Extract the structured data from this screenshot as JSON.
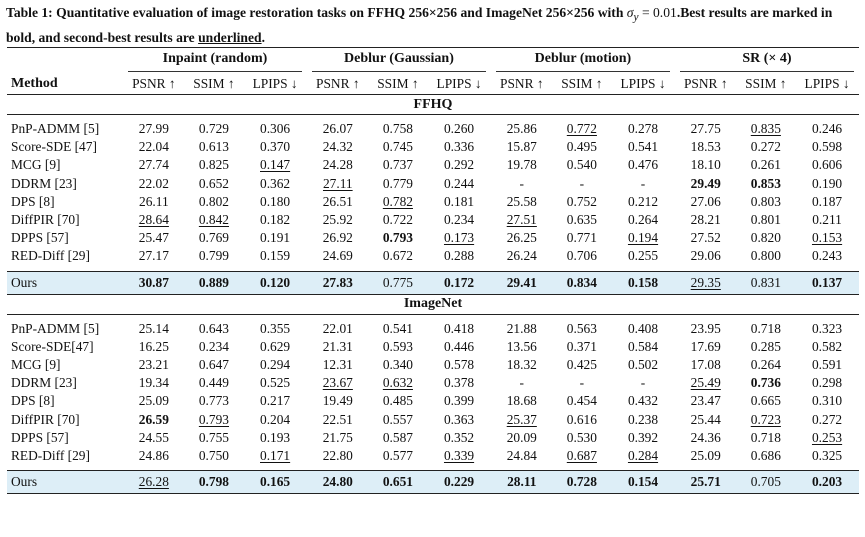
{
  "caption": {
    "label": "Table 1:",
    "text_before_sigma": " Quantitative evaluation of image restoration tasks on FFHQ 256×256 and ImageNet 256×256 with ",
    "sigma": "σ",
    "sigma_sub": "y",
    "sigma_value": " = 0.01",
    "text_after": ".Best results are marked in bold, and second-best results are ",
    "underlined_word": "underlined",
    "period": "."
  },
  "table": {
    "method_header": "Method",
    "groups": [
      "Inpaint (random)",
      "Deblur (Gaussian)",
      "Deblur (motion)",
      "SR (× 4)"
    ],
    "metrics": [
      "PSNR ↑",
      "SSIM ↑",
      "LPIPS ↓",
      "PSNR ↑",
      "SSIM ↑",
      "LPIPS ↓",
      "PSNR ↑",
      "SSIM ↑",
      "LPIPS ↓",
      "PSNR ↑",
      "SSIM ↑",
      "LPIPS ↓"
    ],
    "sections": [
      {
        "name": "FFHQ",
        "rows": [
          {
            "method": "PnP-ADMM [5]",
            "cells": [
              {
                "v": "27.99"
              },
              {
                "v": "0.729"
              },
              {
                "v": "0.306"
              },
              {
                "v": "26.07"
              },
              {
                "v": "0.758"
              },
              {
                "v": "0.260"
              },
              {
                "v": "25.86"
              },
              {
                "v": "0.772",
                "u": true
              },
              {
                "v": "0.278"
              },
              {
                "v": "27.75"
              },
              {
                "v": "0.835",
                "u": true
              },
              {
                "v": "0.246"
              }
            ]
          },
          {
            "method": "Score-SDE [47]",
            "cells": [
              {
                "v": "22.04"
              },
              {
                "v": "0.613"
              },
              {
                "v": "0.370"
              },
              {
                "v": "24.32"
              },
              {
                "v": "0.745"
              },
              {
                "v": "0.336"
              },
              {
                "v": "15.87"
              },
              {
                "v": "0.495"
              },
              {
                "v": "0.541"
              },
              {
                "v": "18.53"
              },
              {
                "v": "0.272"
              },
              {
                "v": "0.598"
              }
            ]
          },
          {
            "method": "MCG [9]",
            "cells": [
              {
                "v": "27.74"
              },
              {
                "v": "0.825"
              },
              {
                "v": "0.147",
                "u": true
              },
              {
                "v": "24.28"
              },
              {
                "v": "0.737"
              },
              {
                "v": "0.292"
              },
              {
                "v": "19.78"
              },
              {
                "v": "0.540"
              },
              {
                "v": "0.476"
              },
              {
                "v": "18.10"
              },
              {
                "v": "0.261"
              },
              {
                "v": "0.606"
              }
            ]
          },
          {
            "method": "DDRM [23]",
            "cells": [
              {
                "v": "22.02"
              },
              {
                "v": "0.652"
              },
              {
                "v": "0.362"
              },
              {
                "v": "27.11",
                "u": true
              },
              {
                "v": "0.779"
              },
              {
                "v": "0.244"
              },
              {
                "v": "-"
              },
              {
                "v": "-"
              },
              {
                "v": "-"
              },
              {
                "v": "29.49",
                "b": true
              },
              {
                "v": "0.853",
                "b": true
              },
              {
                "v": "0.190"
              }
            ]
          },
          {
            "method": "DPS [8]",
            "cells": [
              {
                "v": "26.11"
              },
              {
                "v": "0.802"
              },
              {
                "v": "0.180"
              },
              {
                "v": "26.51"
              },
              {
                "v": "0.782",
                "u": true
              },
              {
                "v": "0.181"
              },
              {
                "v": "25.58"
              },
              {
                "v": "0.752"
              },
              {
                "v": "0.212"
              },
              {
                "v": "27.06"
              },
              {
                "v": "0.803"
              },
              {
                "v": "0.187"
              }
            ]
          },
          {
            "method": "DiffPIR [70]",
            "cells": [
              {
                "v": "28.64",
                "u": true
              },
              {
                "v": "0.842",
                "u": true
              },
              {
                "v": "0.182"
              },
              {
                "v": "25.92"
              },
              {
                "v": "0.722"
              },
              {
                "v": "0.234"
              },
              {
                "v": "27.51",
                "u": true
              },
              {
                "v": "0.635"
              },
              {
                "v": "0.264"
              },
              {
                "v": "28.21"
              },
              {
                "v": "0.801"
              },
              {
                "v": "0.211"
              }
            ]
          },
          {
            "method": "DPPS [57]",
            "cells": [
              {
                "v": "25.47"
              },
              {
                "v": "0.769"
              },
              {
                "v": "0.191"
              },
              {
                "v": "26.92"
              },
              {
                "v": "0.793",
                "b": true
              },
              {
                "v": "0.173",
                "u": true
              },
              {
                "v": "26.25"
              },
              {
                "v": "0.771"
              },
              {
                "v": "0.194",
                "u": true
              },
              {
                "v": "27.52"
              },
              {
                "v": "0.820"
              },
              {
                "v": "0.153",
                "u": true
              }
            ]
          },
          {
            "method": "RED-Diff [29]",
            "cells": [
              {
                "v": "27.17"
              },
              {
                "v": "0.799"
              },
              {
                "v": "0.159"
              },
              {
                "v": "24.69"
              },
              {
                "v": "0.672"
              },
              {
                "v": "0.288"
              },
              {
                "v": "26.24"
              },
              {
                "v": "0.706"
              },
              {
                "v": "0.255"
              },
              {
                "v": "29.06"
              },
              {
                "v": "0.800"
              },
              {
                "v": "0.243"
              }
            ]
          }
        ],
        "ours": {
          "method": "Ours",
          "cells": [
            {
              "v": "30.87",
              "b": true
            },
            {
              "v": "0.889",
              "b": true
            },
            {
              "v": "0.120",
              "b": true
            },
            {
              "v": "27.83",
              "b": true
            },
            {
              "v": "0.775"
            },
            {
              "v": "0.172",
              "b": true
            },
            {
              "v": "29.41",
              "b": true
            },
            {
              "v": "0.834",
              "b": true
            },
            {
              "v": "0.158",
              "b": true
            },
            {
              "v": "29.35",
              "u": true
            },
            {
              "v": "0.831"
            },
            {
              "v": "0.137",
              "b": true
            }
          ]
        }
      },
      {
        "name": "ImageNet",
        "rows": [
          {
            "method": "PnP-ADMM [5]",
            "cells": [
              {
                "v": "25.14"
              },
              {
                "v": "0.643"
              },
              {
                "v": "0.355"
              },
              {
                "v": "22.01"
              },
              {
                "v": "0.541"
              },
              {
                "v": "0.418"
              },
              {
                "v": "21.88"
              },
              {
                "v": "0.563"
              },
              {
                "v": "0.408"
              },
              {
                "v": "23.95"
              },
              {
                "v": "0.718"
              },
              {
                "v": "0.323"
              }
            ]
          },
          {
            "method": "Score-SDE[47]",
            "cells": [
              {
                "v": "16.25"
              },
              {
                "v": "0.234"
              },
              {
                "v": "0.629"
              },
              {
                "v": "21.31"
              },
              {
                "v": "0.593"
              },
              {
                "v": "0.446"
              },
              {
                "v": "13.56"
              },
              {
                "v": "0.371"
              },
              {
                "v": "0.584"
              },
              {
                "v": "17.69"
              },
              {
                "v": "0.285"
              },
              {
                "v": "0.582"
              }
            ]
          },
          {
            "method": "MCG [9]",
            "cells": [
              {
                "v": "23.21"
              },
              {
                "v": "0.647"
              },
              {
                "v": "0.294"
              },
              {
                "v": "12.31"
              },
              {
                "v": "0.340"
              },
              {
                "v": "0.578"
              },
              {
                "v": "18.32"
              },
              {
                "v": "0.425"
              },
              {
                "v": "0.502"
              },
              {
                "v": "17.08"
              },
              {
                "v": "0.264"
              },
              {
                "v": "0.591"
              }
            ]
          },
          {
            "method": "DDRM [23]",
            "cells": [
              {
                "v": "19.34"
              },
              {
                "v": "0.449"
              },
              {
                "v": "0.525"
              },
              {
                "v": "23.67",
                "u": true
              },
              {
                "v": "0.632",
                "u": true
              },
              {
                "v": "0.378"
              },
              {
                "v": "-"
              },
              {
                "v": "-"
              },
              {
                "v": "-"
              },
              {
                "v": "25.49",
                "u": true
              },
              {
                "v": "0.736",
                "b": true
              },
              {
                "v": "0.298"
              }
            ]
          },
          {
            "method": "DPS [8]",
            "cells": [
              {
                "v": "25.09"
              },
              {
                "v": "0.773"
              },
              {
                "v": "0.217"
              },
              {
                "v": "19.49"
              },
              {
                "v": "0.485"
              },
              {
                "v": "0.399"
              },
              {
                "v": "18.68"
              },
              {
                "v": "0.454"
              },
              {
                "v": "0.432"
              },
              {
                "v": "23.47"
              },
              {
                "v": "0.665"
              },
              {
                "v": "0.310"
              }
            ]
          },
          {
            "method": "DiffPIR [70]",
            "cells": [
              {
                "v": "26.59",
                "b": true
              },
              {
                "v": "0.793",
                "u": true
              },
              {
                "v": "0.204"
              },
              {
                "v": "22.51"
              },
              {
                "v": "0.557"
              },
              {
                "v": "0.363"
              },
              {
                "v": "25.37",
                "u": true
              },
              {
                "v": "0.616"
              },
              {
                "v": "0.238"
              },
              {
                "v": "25.44"
              },
              {
                "v": "0.723",
                "u": true
              },
              {
                "v": "0.272"
              }
            ]
          },
          {
            "method": "DPPS [57]",
            "cells": [
              {
                "v": "24.55"
              },
              {
                "v": "0.755"
              },
              {
                "v": "0.193"
              },
              {
                "v": "21.75"
              },
              {
                "v": "0.587"
              },
              {
                "v": "0.352"
              },
              {
                "v": "20.09"
              },
              {
                "v": "0.530"
              },
              {
                "v": "0.392"
              },
              {
                "v": "24.36"
              },
              {
                "v": "0.718"
              },
              {
                "v": "0.253",
                "u": true
              }
            ]
          },
          {
            "method": "RED-Diff [29]",
            "cells": [
              {
                "v": "24.86"
              },
              {
                "v": "0.750"
              },
              {
                "v": "0.171",
                "u": true
              },
              {
                "v": "22.80"
              },
              {
                "v": "0.577"
              },
              {
                "v": "0.339",
                "u": true
              },
              {
                "v": "24.84"
              },
              {
                "v": "0.687",
                "u": true
              },
              {
                "v": "0.284",
                "u": true
              },
              {
                "v": "25.09"
              },
              {
                "v": "0.686"
              },
              {
                "v": "0.325"
              }
            ]
          }
        ],
        "ours": {
          "method": "Ours",
          "cells": [
            {
              "v": "26.28",
              "u": true
            },
            {
              "v": "0.798",
              "b": true
            },
            {
              "v": "0.165",
              "b": true
            },
            {
              "v": "24.80",
              "b": true
            },
            {
              "v": "0.651",
              "b": true
            },
            {
              "v": "0.229",
              "b": true
            },
            {
              "v": "28.11",
              "b": true
            },
            {
              "v": "0.728",
              "b": true
            },
            {
              "v": "0.154",
              "b": true
            },
            {
              "v": "25.71",
              "b": true
            },
            {
              "v": "0.705"
            },
            {
              "v": "0.203",
              "b": true
            }
          ]
        }
      }
    ],
    "highlight_color": "#ddeef7"
  }
}
